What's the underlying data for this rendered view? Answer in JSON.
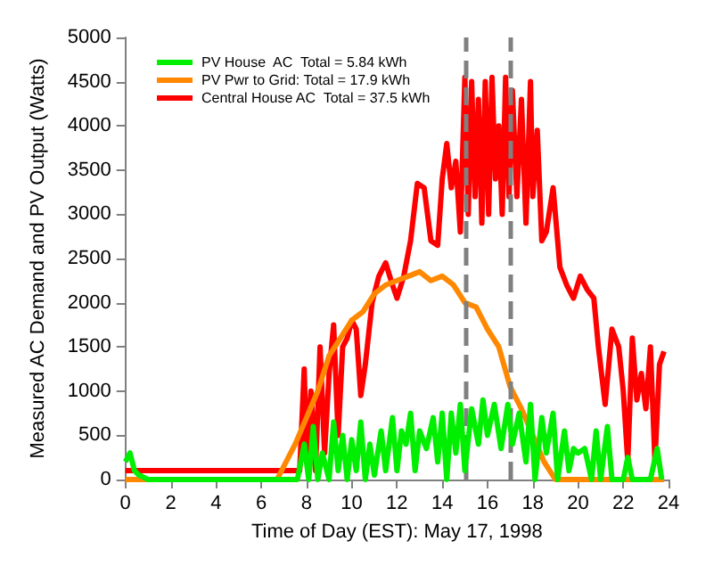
{
  "chart_data": {
    "type": "line",
    "xlabel": "Time of Day (EST): May 17, 1998",
    "ylabel": "Measured AC Demand and PV Output (Watts)",
    "xlim": [
      0,
      24
    ],
    "xticks": [
      0,
      2,
      4,
      6,
      8,
      10,
      12,
      14,
      16,
      18,
      20,
      22,
      24
    ],
    "ylim": [
      0,
      5000
    ],
    "yticks": [
      0,
      500,
      1000,
      1500,
      2000,
      2500,
      3000,
      3500,
      4000,
      4500,
      5000
    ],
    "grid": false,
    "legend": "top left",
    "marker": "none",
    "line_style": "solid",
    "ref_lines": [
      {
        "axis": "x",
        "value": 15,
        "color": "#808080",
        "line_style": "dashed"
      },
      {
        "axis": "x",
        "value": 17,
        "color": "#808080",
        "line_style": "dashed"
      }
    ],
    "series": [
      {
        "name": "PV House  AC  Total = 5.84 kWh",
        "color": "#00ee00",
        "x": [
          0,
          0.2,
          0.4,
          0.6,
          1,
          7.6,
          7.9,
          8.1,
          8.3,
          8.5,
          8.7,
          9,
          9.2,
          9.4,
          9.6,
          9.8,
          10,
          10.2,
          10.4,
          10.6,
          10.8,
          11,
          11.3,
          11.5,
          11.8,
          12,
          12.2,
          12.4,
          12.6,
          12.8,
          13,
          13.3,
          13.6,
          13.8,
          14,
          14.2,
          14.4,
          14.6,
          14.8,
          15,
          15.3,
          15.6,
          15.8,
          16,
          16.3,
          16.6,
          16.9,
          17.1,
          17.4,
          17.7,
          17.9,
          18.1,
          18.4,
          18.6,
          18.9,
          19.1,
          19.4,
          19.6,
          19.8,
          20,
          20.3,
          20.6,
          20.8,
          21,
          21.3,
          21.5,
          22,
          22.2,
          22.4,
          23.2,
          23.5,
          23.7
        ],
        "values": [
          200,
          300,
          100,
          50,
          0,
          0,
          400,
          0,
          600,
          0,
          300,
          0,
          650,
          100,
          500,
          0,
          450,
          100,
          650,
          0,
          400,
          50,
          550,
          100,
          700,
          100,
          550,
          400,
          750,
          100,
          550,
          350,
          700,
          200,
          750,
          0,
          750,
          300,
          850,
          100,
          800,
          400,
          900,
          500,
          850,
          350,
          850,
          400,
          750,
          200,
          850,
          0,
          700,
          300,
          750,
          0,
          550,
          100,
          350,
          300,
          350,
          0,
          550,
          0,
          600,
          0,
          0,
          250,
          0,
          0,
          350,
          0
        ]
      },
      {
        "name": "PV Pwr to Grid: Total = 17.9 kWh",
        "color": "#ff8800",
        "x": [
          0,
          6.7,
          7.5,
          8,
          8.5,
          9,
          9.5,
          10,
          10.5,
          11,
          11.5,
          12,
          12.5,
          13,
          13.5,
          14,
          14.5,
          15,
          15.5,
          16,
          16.5,
          17,
          17.5,
          18,
          18.5,
          19,
          23.8
        ],
        "values": [
          0,
          0,
          400,
          700,
          1000,
          1400,
          1600,
          1800,
          1900,
          2100,
          2200,
          2250,
          2300,
          2350,
          2250,
          2300,
          2200,
          2000,
          1950,
          1700,
          1500,
          1050,
          800,
          500,
          200,
          0,
          0
        ]
      },
      {
        "name": "Central House AC  Total = 37.5 kWh",
        "color": "#ff0000",
        "x": [
          0,
          7.7,
          7.9,
          8,
          8.2,
          8.4,
          8.6,
          8.8,
          9,
          9.2,
          9.4,
          9.6,
          9.8,
          10,
          10.2,
          10.4,
          10.6,
          10.9,
          11.2,
          11.5,
          11.8,
          12,
          12.3,
          12.6,
          12.9,
          13.2,
          13.5,
          13.8,
          14,
          14.2,
          14.4,
          14.6,
          14.8,
          15,
          15.15,
          15.3,
          15.45,
          15.6,
          15.75,
          15.9,
          16.05,
          16.2,
          16.35,
          16.5,
          16.65,
          16.8,
          16.95,
          17.1,
          17.3,
          17.5,
          17.7,
          17.9,
          18,
          18.2,
          18.4,
          18.6,
          18.9,
          19.2,
          19.5,
          19.8,
          20.1,
          20.4,
          20.7,
          20.9,
          21.2,
          21.5,
          21.8,
          22,
          22.2,
          22.4,
          22.6,
          22.8,
          23,
          23.2,
          23.4,
          23.6,
          23.8
        ],
        "values": [
          100,
          100,
          1250,
          300,
          1000,
          100,
          1500,
          300,
          1200,
          1750,
          500,
          1500,
          1600,
          1800,
          1700,
          950,
          1300,
          2000,
          2300,
          2450,
          2200,
          2050,
          2300,
          2700,
          3350,
          3300,
          2700,
          2650,
          3400,
          3800,
          3300,
          3600,
          2800,
          4550,
          3000,
          4500,
          3200,
          4300,
          2900,
          4500,
          3000,
          4550,
          3400,
          4000,
          3000,
          4550,
          3200,
          4400,
          3200,
          4300,
          2900,
          4500,
          3200,
          3950,
          2700,
          2800,
          3300,
          2400,
          2200,
          2050,
          2300,
          2150,
          2050,
          1500,
          850,
          1700,
          1500,
          1000,
          200,
          1600,
          900,
          1200,
          800,
          1500,
          200,
          1300,
          1450
        ]
      }
    ]
  }
}
